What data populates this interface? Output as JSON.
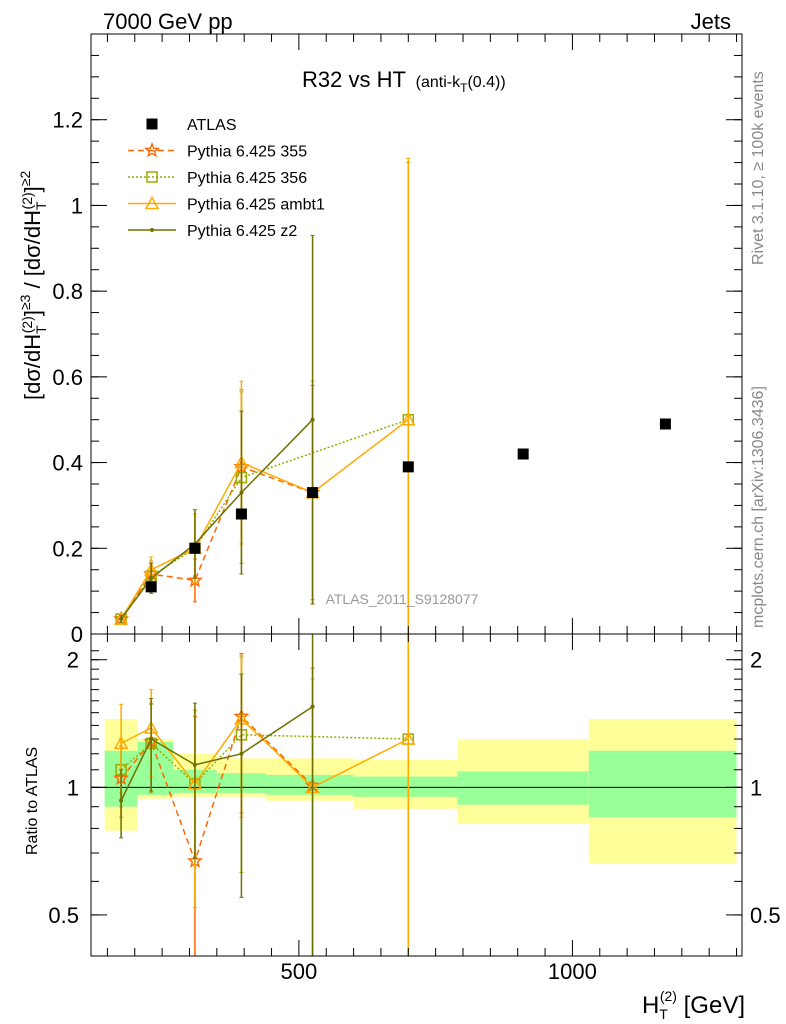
{
  "header": {
    "left": "7000 GeV pp",
    "right": "Jets"
  },
  "side_labels": {
    "top": "Rivet 3.1.10, ≥ 100k events",
    "bottom": "mcplots.cern.ch [arXiv:1306.3436]"
  },
  "chart_data": [
    {
      "type": "scatter",
      "title": "R32 vs HT",
      "title_sub": "(anti-k",
      "title_sub_T": "T",
      "title_sub_end": "(0.4))",
      "watermark": "ATLAS_2011_S9128077",
      "xlabel": "H",
      "xlabel_sub": "T",
      "xlabel_sup": "(2)",
      "xlabel_unit": " [GeV]",
      "ylabel": "[dσ/dH_T^(2)]^≥3 / [dσ/dH_T^(2)]^≥2",
      "xlim": [
        120,
        1310
      ],
      "ylim": [
        0,
        1.4
      ],
      "yticks": [
        0,
        0.2,
        0.4,
        0.6,
        0.8,
        1,
        1.2
      ],
      "ytick_labels": [
        "0",
        "0.2",
        "0.4",
        "0.6",
        "0.8",
        "1",
        "1.2"
      ],
      "legend_position": "top-left",
      "series": [
        {
          "name": "ATLAS",
          "color": "#000000",
          "marker": "square",
          "x": [
            230,
            310,
            395,
            525,
            700,
            910,
            1170
          ],
          "y": [
            0.11,
            0.2,
            0.28,
            0.33,
            0.39,
            0.42,
            0.49
          ]
        },
        {
          "name": "Pythia 6.425 355",
          "color": "#ff6600",
          "marker": "star",
          "line": "dashed",
          "x": [
            175,
            230,
            310,
            395,
            525
          ],
          "y": [
            0.035,
            0.14,
            0.125,
            0.39,
            0.33
          ],
          "err": [
            0.008,
            0.03,
            0.05,
            0.18,
            0.25
          ]
        },
        {
          "name": "Pythia 6.425 356",
          "color": "#99aa00",
          "marker": "open-square",
          "line": "dotted",
          "x": [
            175,
            230,
            310,
            395,
            700
          ],
          "y": [
            0.035,
            0.135,
            0.2,
            0.365,
            0.5
          ],
          "err": [
            0.008,
            0.03,
            0.08,
            0.2,
            0.6
          ]
        },
        {
          "name": "Pythia 6.425 ambt1",
          "color": "#ffaa00",
          "marker": "open-triangle",
          "line": "solid",
          "x": [
            175,
            230,
            310,
            395,
            525,
            700
          ],
          "y": [
            0.035,
            0.15,
            0.2,
            0.4,
            0.33,
            0.5
          ],
          "err": [
            0.008,
            0.03,
            0.08,
            0.19,
            0.26,
            0.61
          ]
        },
        {
          "name": "Pythia 6.425 z2",
          "color": "#707000",
          "marker": "dot",
          "line": "solid",
          "x": [
            175,
            230,
            310,
            395,
            525
          ],
          "y": [
            0.035,
            0.13,
            0.21,
            0.33,
            0.5
          ],
          "err": [
            0.008,
            0.035,
            0.08,
            0.19,
            0.43
          ]
        }
      ]
    },
    {
      "type": "scatter",
      "ylabel": "Ratio to ATLAS",
      "xlim": [
        120,
        1310
      ],
      "ylim": [
        0.4,
        2.3
      ],
      "ylog": true,
      "yticks": [
        0.5,
        1,
        2
      ],
      "ytick_labels": [
        "0.5",
        "1",
        "2"
      ],
      "xticks": [
        500,
        1000
      ],
      "xtick_labels": [
        "500",
        "1000"
      ],
      "bands": [
        {
          "x": [
            145,
            205
          ],
          "inner": [
            0.9,
            1.22
          ],
          "outer": [
            0.79,
            1.45
          ]
        },
        {
          "x": [
            205,
            270
          ],
          "inner": [
            0.96,
            1.28
          ],
          "outer": [
            0.94,
            1.3
          ]
        },
        {
          "x": [
            270,
            350
          ],
          "inner": [
            0.97,
            1.1
          ],
          "outer": [
            0.95,
            1.2
          ]
        },
        {
          "x": [
            350,
            440
          ],
          "inner": [
            0.97,
            1.08
          ],
          "outer": [
            0.95,
            1.17
          ]
        },
        {
          "x": [
            440,
            600
          ],
          "inner": [
            0.96,
            1.07
          ],
          "outer": [
            0.93,
            1.17
          ]
        },
        {
          "x": [
            600,
            790
          ],
          "inner": [
            0.95,
            1.06
          ],
          "outer": [
            0.89,
            1.16
          ]
        },
        {
          "x": [
            790,
            1030
          ],
          "inner": [
            0.91,
            1.09
          ],
          "outer": [
            0.82,
            1.3
          ]
        },
        {
          "x": [
            1030,
            1300
          ],
          "inner": [
            0.85,
            1.22
          ],
          "outer": [
            0.66,
            1.45
          ]
        }
      ],
      "series": [
        {
          "name": "Pythia 6.425 355",
          "color": "#ff6600",
          "marker": "star",
          "line": "dashed",
          "x": [
            175,
            230,
            310,
            395,
            525
          ],
          "y": [
            1.05,
            1.28,
            0.67,
            1.47,
            1.01
          ],
          "err": [
            0.2,
            0.3,
            0.8,
            0.6,
            0.9
          ]
        },
        {
          "name": "Pythia 6.425 356",
          "color": "#99aa00",
          "marker": "open-square",
          "line": "dotted",
          "x": [
            175,
            230,
            310,
            395,
            700
          ],
          "y": [
            1.1,
            1.27,
            1.02,
            1.33,
            1.3
          ],
          "err": [
            0.2,
            0.3,
            0.5,
            0.7,
            2.0
          ]
        },
        {
          "name": "Pythia 6.425 ambt1",
          "color": "#ffaa00",
          "marker": "open-triangle",
          "line": "solid",
          "x": [
            175,
            230,
            310,
            395,
            525,
            700
          ],
          "y": [
            1.27,
            1.38,
            1.02,
            1.45,
            1.0,
            1.3
          ],
          "err": [
            0.3,
            0.32,
            0.5,
            0.6,
            0.8,
            2.0
          ]
        },
        {
          "name": "Pythia 6.425 z2",
          "color": "#707000",
          "marker": "dot",
          "line": "solid",
          "x": [
            175,
            230,
            310,
            395,
            525
          ],
          "y": [
            0.93,
            1.3,
            1.13,
            1.2,
            1.55
          ],
          "err": [
            0.17,
            0.32,
            0.45,
            0.65,
            1.3
          ]
        }
      ]
    }
  ]
}
